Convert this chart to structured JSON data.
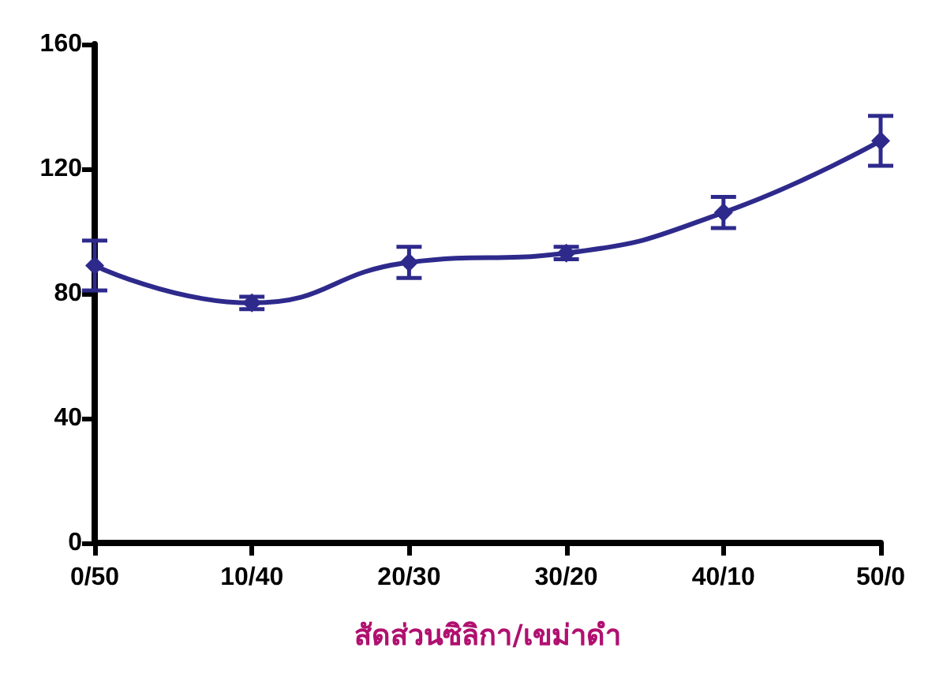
{
  "chart_data": {
    "type": "line",
    "xlabel": "สัดส่วนซิลิกา/เขม่าดำ",
    "categories": [
      "0/50",
      "10/40",
      "20/30",
      "30/20",
      "40/10",
      "50/0"
    ],
    "series": [
      {
        "color": "#2e2a8c",
        "values": [
          89,
          77,
          90,
          93,
          106,
          129
        ],
        "errors": [
          8,
          2,
          5,
          2,
          5,
          8
        ]
      }
    ],
    "ylim": [
      0,
      160
    ],
    "yticks": [
      0,
      40,
      80,
      120,
      160
    ],
    "marker": "diamond",
    "line_style": "solid"
  }
}
